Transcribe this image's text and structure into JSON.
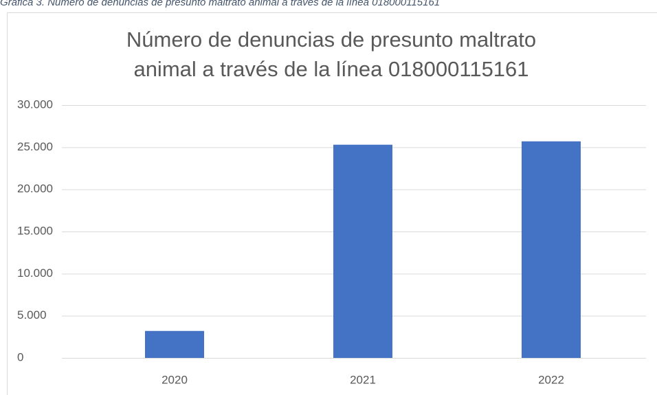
{
  "caption": "Gráfica 3. Número de denuncias de presunto maltrato animal a través de la línea 018000115161",
  "chart_data": {
    "type": "bar",
    "title": [
      "Número de denuncias de presunto maltrato",
      "animal a través de la línea 018000115161"
    ],
    "categories": [
      "2020",
      "2021",
      "2022"
    ],
    "values": [
      3200,
      25300,
      25700
    ],
    "color": "#4472c4",
    "ylim": [
      0,
      30000
    ],
    "yticks": [
      0,
      {
        "value": 5000,
        "label": "5.000"
      },
      {
        "value": 10000,
        "label": "10.000"
      },
      {
        "value": 15000,
        "label": "15.000"
      },
      {
        "value": 20000,
        "label": "20.000"
      },
      {
        "value": 25000,
        "label": "25.000"
      },
      {
        "value": 30000,
        "label": "30.000"
      }
    ],
    "grid": true
  }
}
